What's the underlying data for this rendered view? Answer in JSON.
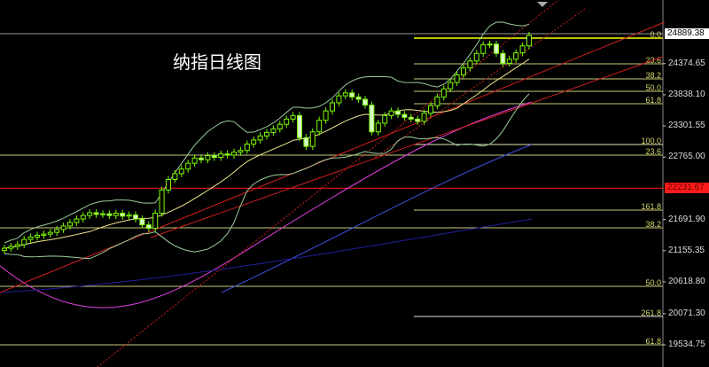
{
  "title": "纳指日线图",
  "chart_data": {
    "type": "candlestick",
    "title": "纳指日线图",
    "ylim": [
      19400,
      25400
    ],
    "y_ticks": [
      "24374.65",
      "23838.10",
      "23301.55",
      "22765.00",
      "21691.90",
      "21155.35",
      "20618.80",
      "20071.30",
      "19534.75"
    ],
    "y_tick_values": [
      24374.65,
      23838.1,
      23301.55,
      22765.0,
      21691.9,
      21155.35,
      20618.8,
      20071.3,
      19534.75
    ],
    "current_price": {
      "label": "24889.38",
      "value": 24889.38
    },
    "marked_price": {
      "label": "22231.67",
      "value": 22231.67
    },
    "closes": [
      21197,
      21230,
      21260,
      21350,
      21390,
      21420,
      21440,
      21470,
      21520,
      21580,
      21640,
      21700,
      21760,
      21808,
      21780,
      21790,
      21760,
      21800,
      21750,
      21770,
      21700,
      21600,
      21540,
      21800,
      22200,
      22380,
      22480,
      22560,
      22660,
      22750,
      22720,
      22790,
      22760,
      22820,
      22800,
      22850,
      22880,
      22990,
      23060,
      23130,
      23190,
      23250,
      23330,
      23420,
      23480,
      23100,
      22950,
      23200,
      23400,
      23560,
      23700,
      23820,
      23870,
      23800,
      23760,
      23660,
      23200,
      23350,
      23480,
      23560,
      23500,
      23450,
      23420,
      23380,
      23520,
      23650,
      23800,
      23940,
      24050,
      24180,
      24300,
      24420,
      24550,
      24700,
      24710,
      24550,
      24380,
      24450,
      24560,
      24680,
      24860
    ],
    "fib_levels": [
      {
        "label": "0.0",
        "value": 24813,
        "color": "#ffff00"
      },
      {
        "label": "23.6",
        "value": 24371,
        "color": "#c8c878"
      },
      {
        "label": "38.2",
        "value": 24111,
        "color": "#c8c878"
      },
      {
        "label": "50.0",
        "value": 23898,
        "color": "#c8c878"
      },
      {
        "label": "61.8",
        "value": 23684,
        "color": "#c8c878"
      },
      {
        "label": "100.0",
        "value": 22982,
        "color": "#e8e8b0"
      },
      {
        "label": "23.6",
        "value": 22799,
        "color": "#c8c878"
      },
      {
        "label": "161.8",
        "value": 21854,
        "color": "#c8c878"
      },
      {
        "label": "38.2",
        "value": 21548,
        "color": "#c8c878"
      },
      {
        "label": "50.0",
        "value": 20542,
        "color": "#c8c878"
      },
      {
        "label": "261.8",
        "value": 20023,
        "color": "#e0e0e0"
      },
      {
        "label": "61.8",
        "value": 19535,
        "color": "#c8c878"
      }
    ],
    "colors": {
      "up": "#7cfc00",
      "down": "#d8f8c8",
      "bands": "#9acd9a",
      "mid": "#f0e68c",
      "ma_purple": "#e040e0",
      "ma_blue": "#4050e0",
      "ma_navy": "#2020a0",
      "trend": "#d02020",
      "marked": "#ff1a1a"
    }
  }
}
